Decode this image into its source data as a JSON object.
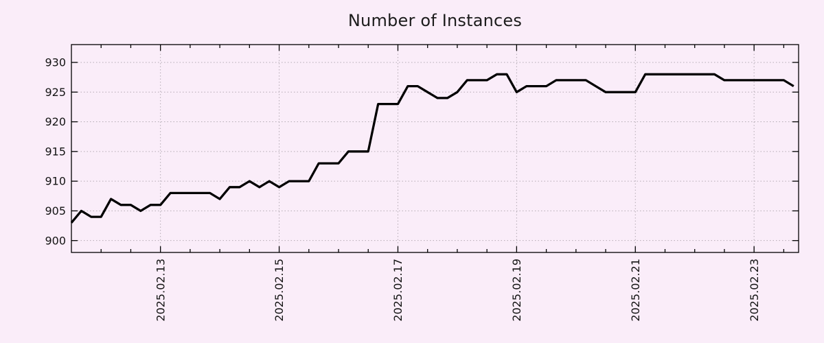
{
  "chart_data": {
    "type": "line",
    "title": "Number of Instances",
    "xlabel": "",
    "ylabel": "",
    "legend": "none",
    "grid": "dotted",
    "x_start": "2025-02-11 12:00",
    "x_interval_hours": 4,
    "x_end": "2025-02-23 16:00",
    "xlim_hours": [
      0,
      294
    ],
    "ylim": [
      898,
      933
    ],
    "y_ticks": [
      900,
      905,
      910,
      915,
      920,
      925,
      930
    ],
    "x_tick_labels": [
      "2025.02.13",
      "2025.02.15",
      "2025.02.17",
      "2025.02.19",
      "2025.02.21",
      "2025.02.23"
    ],
    "x_tick_hours": [
      36,
      84,
      132,
      180,
      228,
      276
    ],
    "x_minor_tick_every_hours": 12,
    "values": [
      903,
      905,
      904,
      904,
      907,
      906,
      906,
      905,
      906,
      906,
      908,
      908,
      908,
      908,
      908,
      907,
      909,
      909,
      910,
      909,
      910,
      909,
      910,
      910,
      910,
      913,
      913,
      913,
      915,
      915,
      915,
      923,
      923,
      923,
      926,
      926,
      925,
      924,
      924,
      925,
      927,
      927,
      927,
      928,
      928,
      925,
      926,
      926,
      926,
      927,
      927,
      927,
      927,
      926,
      925,
      925,
      925,
      925,
      928,
      928,
      928,
      928,
      928,
      928,
      928,
      928,
      927,
      927,
      927,
      927,
      927,
      927,
      927,
      926
    ],
    "line_color": "#000000",
    "grid_color": "#b3aab3",
    "axis_color": "#000000",
    "background_color": "#faedf9",
    "text_color": "#141414"
  }
}
